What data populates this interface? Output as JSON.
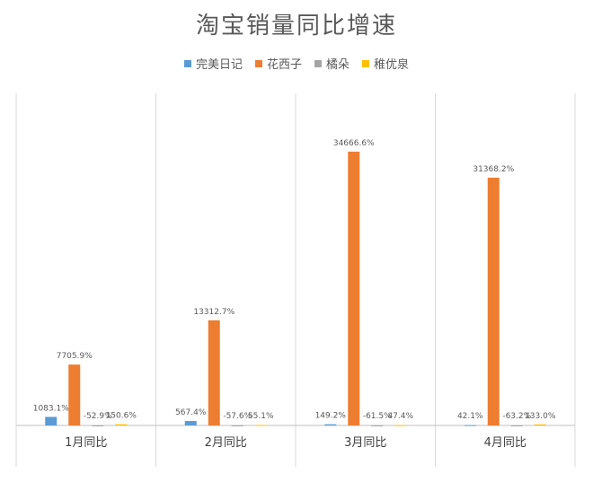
{
  "chart_data": {
    "type": "bar",
    "title": "淘宝销量同比增速",
    "categories": [
      "1月同比",
      "2月同比",
      "3月同比",
      "4月同比"
    ],
    "series": [
      {
        "name": "完美日记",
        "color": "#5b9bd5",
        "values": [
          1083.1,
          567.4,
          149.2,
          42.1
        ],
        "labels": [
          "1083.1%",
          "567.4%",
          "149.2%",
          "42.1%"
        ]
      },
      {
        "name": "花西子",
        "color": "#ed7d31",
        "values": [
          7705.9,
          13312.7,
          34666.6,
          31368.2
        ],
        "labels": [
          "7705.9%",
          "13312.7%",
          "34666.6%",
          "31368.2%"
        ]
      },
      {
        "name": "橘朵",
        "color": "#a5a5a5",
        "values": [
          -52.9,
          -57.6,
          -61.5,
          -63.2
        ],
        "labels": [
          "-52.9%",
          "-57.6%",
          "-61.5%",
          "-63.2%"
        ]
      },
      {
        "name": "稚优泉",
        "color": "#ffc000",
        "values": [
          150.6,
          55.1,
          47.4,
          133.0
        ],
        "labels": [
          "150.6%",
          "55.1%",
          "47.4%",
          "133.0%"
        ]
      }
    ],
    "ylim": [
      -100,
      40000
    ],
    "legend_position": "top",
    "grid": false
  }
}
